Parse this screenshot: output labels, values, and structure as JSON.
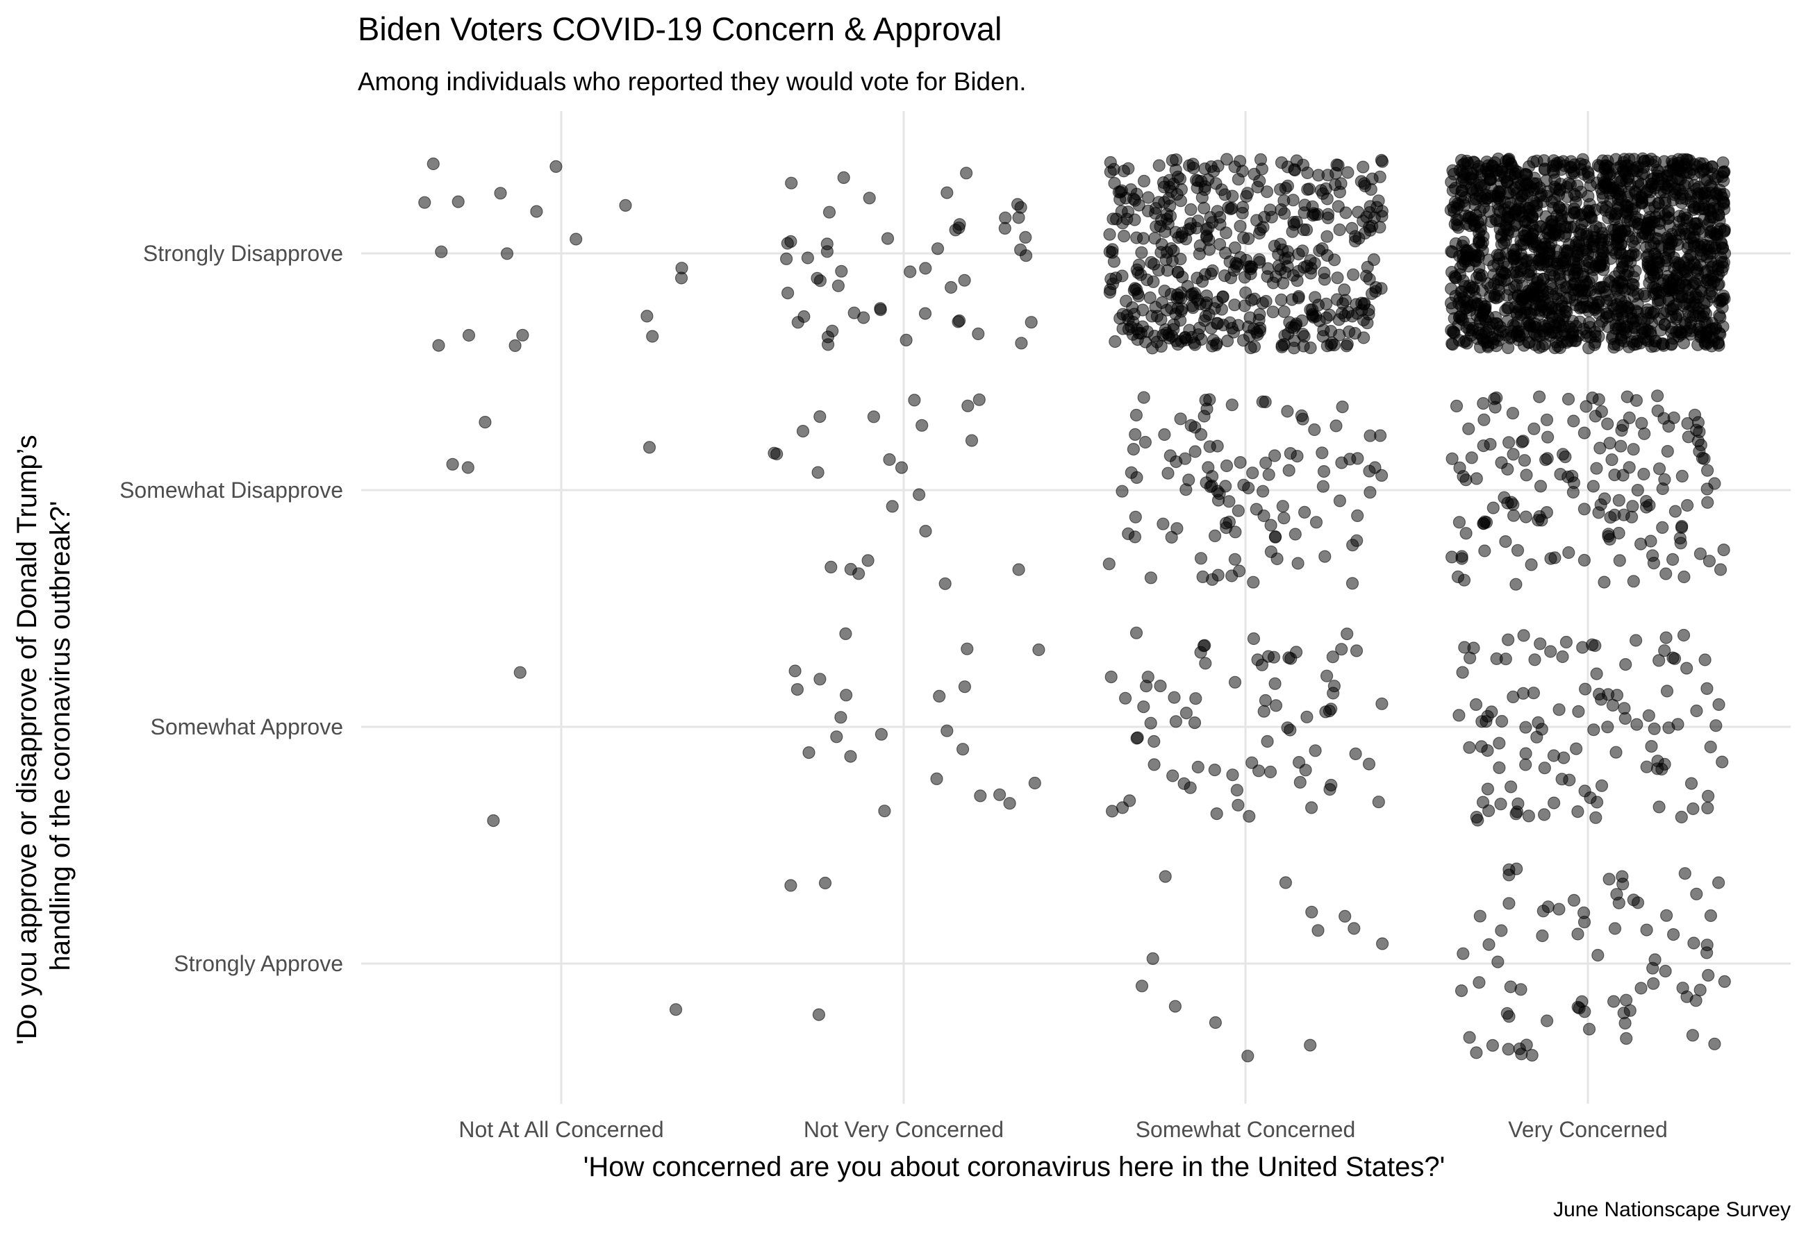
{
  "chart_data": {
    "type": "scatter",
    "jitter": true,
    "title": "Biden Voters COVID-19 Concern & Approval",
    "subtitle": "Among individuals who reported they would vote for Biden.",
    "xlabel": "'How concerned are you about coronavirus here in the United States?'",
    "ylabel_lines": [
      "'Do you approve or disapprove of Donald Trump’s",
      "handling of the coronavirus outbreak?'"
    ],
    "caption": "June Nationscape Survey",
    "x_categories": [
      "Not At All Concerned",
      "Not Very Concerned",
      "Somewhat Concerned",
      "Very Concerned"
    ],
    "y_categories": [
      "Strongly Approve",
      "Somewhat Approve",
      "Somewhat Disapprove",
      "Strongly Disapprove"
    ],
    "grid": true,
    "point_color": "#000000",
    "point_alpha": 0.5,
    "counts": [
      {
        "x": "Not At All Concerned",
        "y": "Strongly Disapprove",
        "n": 18
      },
      {
        "x": "Not At All Concerned",
        "y": "Somewhat Disapprove",
        "n": 4
      },
      {
        "x": "Not At All Concerned",
        "y": "Somewhat Approve",
        "n": 2
      },
      {
        "x": "Not At All Concerned",
        "y": "Strongly Approve",
        "n": 1
      },
      {
        "x": "Not Very Concerned",
        "y": "Strongly Disapprove",
        "n": 50
      },
      {
        "x": "Not Very Concerned",
        "y": "Somewhat Disapprove",
        "n": 22
      },
      {
        "x": "Not Very Concerned",
        "y": "Somewhat Approve",
        "n": 22
      },
      {
        "x": "Not Very Concerned",
        "y": "Strongly Approve",
        "n": 3
      },
      {
        "x": "Somewhat Concerned",
        "y": "Strongly Disapprove",
        "n": 500
      },
      {
        "x": "Somewhat Concerned",
        "y": "Somewhat Disapprove",
        "n": 110
      },
      {
        "x": "Somewhat Concerned",
        "y": "Somewhat Approve",
        "n": 75
      },
      {
        "x": "Somewhat Concerned",
        "y": "Strongly Approve",
        "n": 13
      },
      {
        "x": "Very Concerned",
        "y": "Strongly Disapprove",
        "n": 1600
      },
      {
        "x": "Very Concerned",
        "y": "Somewhat Disapprove",
        "n": 160
      },
      {
        "x": "Very Concerned",
        "y": "Somewhat Approve",
        "n": 110
      },
      {
        "x": "Very Concerned",
        "y": "Strongly Approve",
        "n": 75
      }
    ]
  }
}
